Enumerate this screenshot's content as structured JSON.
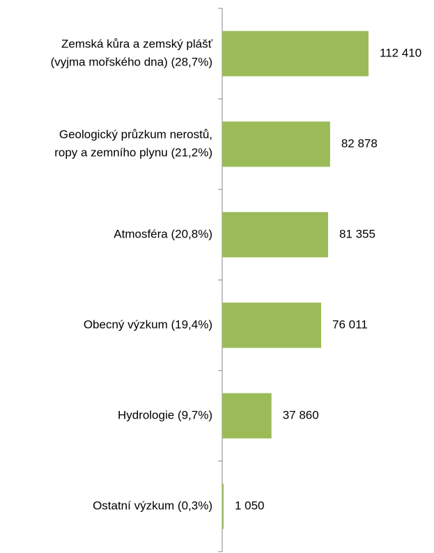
{
  "chart_data": {
    "type": "barh",
    "categories": [
      [
        "Zemská kůra a zemský plášť",
        "(vyjma mořského dna) (28,7%)"
      ],
      [
        "Geologický průzkum nerostů,",
        "ropy a zemního plynu (21,2%)"
      ],
      [
        "Atmosféra (20,8%)"
      ],
      [
        "Obecný výzkum (19,4%)"
      ],
      [
        "Hydrologie (9,7%)"
      ],
      [
        "Ostatní výzkum (0,3%)"
      ]
    ],
    "values": [
      112410,
      82878,
      81355,
      76011,
      37860,
      1050
    ],
    "value_labels": [
      "112 410",
      "82 878",
      "81 355",
      "76 011",
      "37 860",
      "1 050"
    ],
    "color": "#9bbb59"
  }
}
